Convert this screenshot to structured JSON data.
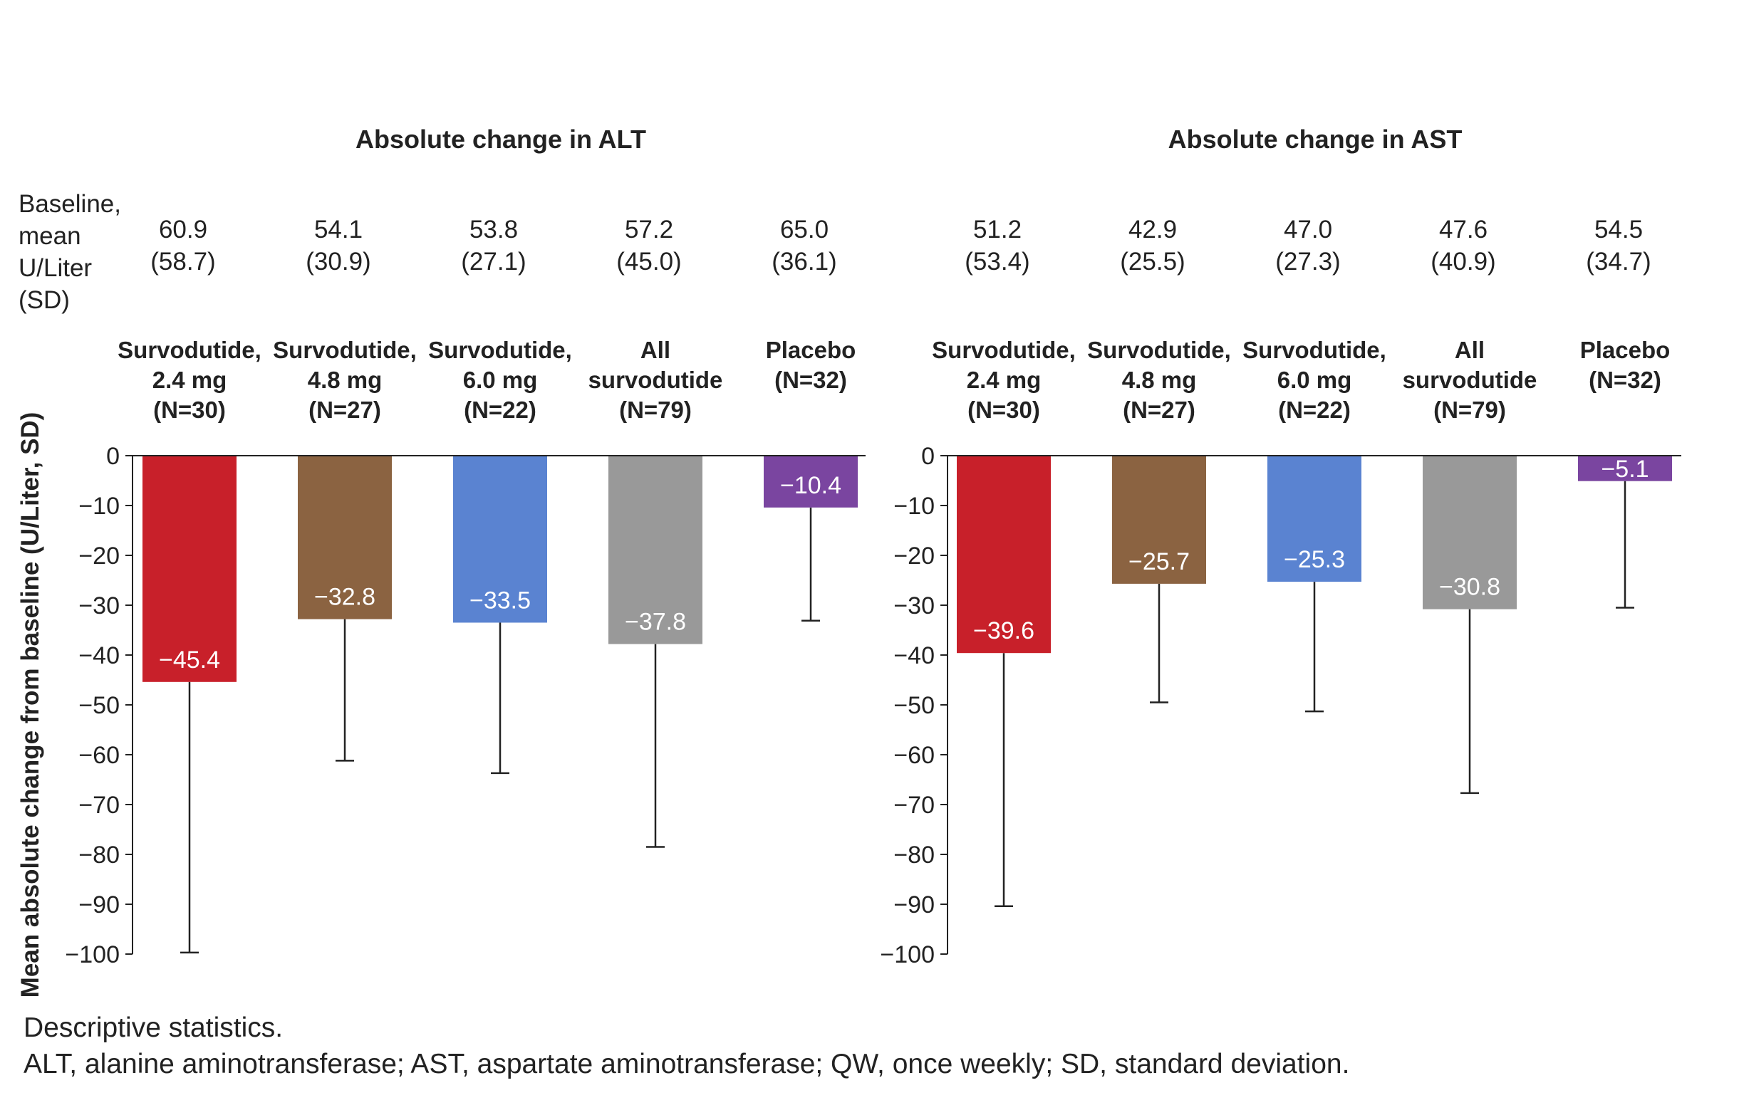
{
  "y_axis_label": "Mean absolute change from baseline (U/Liter, SD)",
  "baseline_label": [
    "Baseline,",
    "mean",
    "U/Liter",
    "(SD)"
  ],
  "footnotes": [
    "Descriptive statistics.",
    "ALT, alanine aminotransferase; AST, aspartate aminotransferase; QW, once weekly; SD, standard deviation."
  ],
  "chart_data": [
    {
      "type": "bar",
      "title": "Absolute change in ALT",
      "ylabel": "Mean absolute change from baseline (U/Liter, SD)",
      "ylim": [
        -100,
        0
      ],
      "yticks": [
        "0",
        "−10",
        "−20",
        "−30",
        "−40",
        "−50",
        "−60",
        "−70",
        "−80",
        "−90",
        "−100"
      ],
      "grid": false,
      "categories": [
        [
          "Survodutide,",
          "2.4 mg",
          "(N=30)"
        ],
        [
          "Survodutide,",
          "4.8 mg",
          "(N=27)"
        ],
        [
          "Survodutide,",
          "6.0 mg",
          "(N=22)"
        ],
        [
          "All",
          "survodutide",
          "(N=79)"
        ],
        [
          "Placebo",
          "(N=32)"
        ]
      ],
      "baseline_mean": [
        "60.9",
        "54.1",
        "53.8",
        "57.2",
        "65.0"
      ],
      "baseline_sd": [
        "(58.7)",
        "(30.9)",
        "(27.1)",
        "(45.0)",
        "(36.1)"
      ],
      "values": [
        -45.4,
        -32.8,
        -33.5,
        -37.8,
        -10.4
      ],
      "value_labels": [
        "−45.4",
        "−32.8",
        "−33.5",
        "−37.8",
        "−10.4"
      ],
      "sd": [
        54.3,
        28.4,
        30.2,
        40.7,
        22.7
      ],
      "colors": [
        "#c8202a",
        "#8b6341",
        "#5a83d1",
        "#999999",
        "#7a45a0"
      ]
    },
    {
      "type": "bar",
      "title": "Absolute change in AST",
      "ylabel": "",
      "ylim": [
        -100,
        0
      ],
      "yticks": [
        "0",
        "−10",
        "−20",
        "−30",
        "−40",
        "−50",
        "−60",
        "−70",
        "−80",
        "−90",
        "−100"
      ],
      "grid": false,
      "categories": [
        [
          "Survodutide,",
          "2.4 mg",
          "(N=30)"
        ],
        [
          "Survodutide,",
          "4.8 mg",
          "(N=27)"
        ],
        [
          "Survodutide,",
          "6.0 mg",
          "(N=22)"
        ],
        [
          "All",
          "survodutide",
          "(N=79)"
        ],
        [
          "Placebo",
          "(N=32)"
        ]
      ],
      "baseline_mean": [
        "51.2",
        "42.9",
        "47.0",
        "47.6",
        "54.5"
      ],
      "baseline_sd": [
        "(53.4)",
        "(25.5)",
        "(27.3)",
        "(40.9)",
        "(34.7)"
      ],
      "values": [
        -39.6,
        -25.7,
        -25.3,
        -30.8,
        -5.1
      ],
      "value_labels": [
        "−39.6",
        "−25.7",
        "−25.3",
        "−30.8",
        "−5.1"
      ],
      "sd": [
        50.8,
        23.8,
        26.0,
        36.9,
        25.4
      ],
      "colors": [
        "#c8202a",
        "#8b6341",
        "#5a83d1",
        "#999999",
        "#7a45a0"
      ]
    }
  ]
}
